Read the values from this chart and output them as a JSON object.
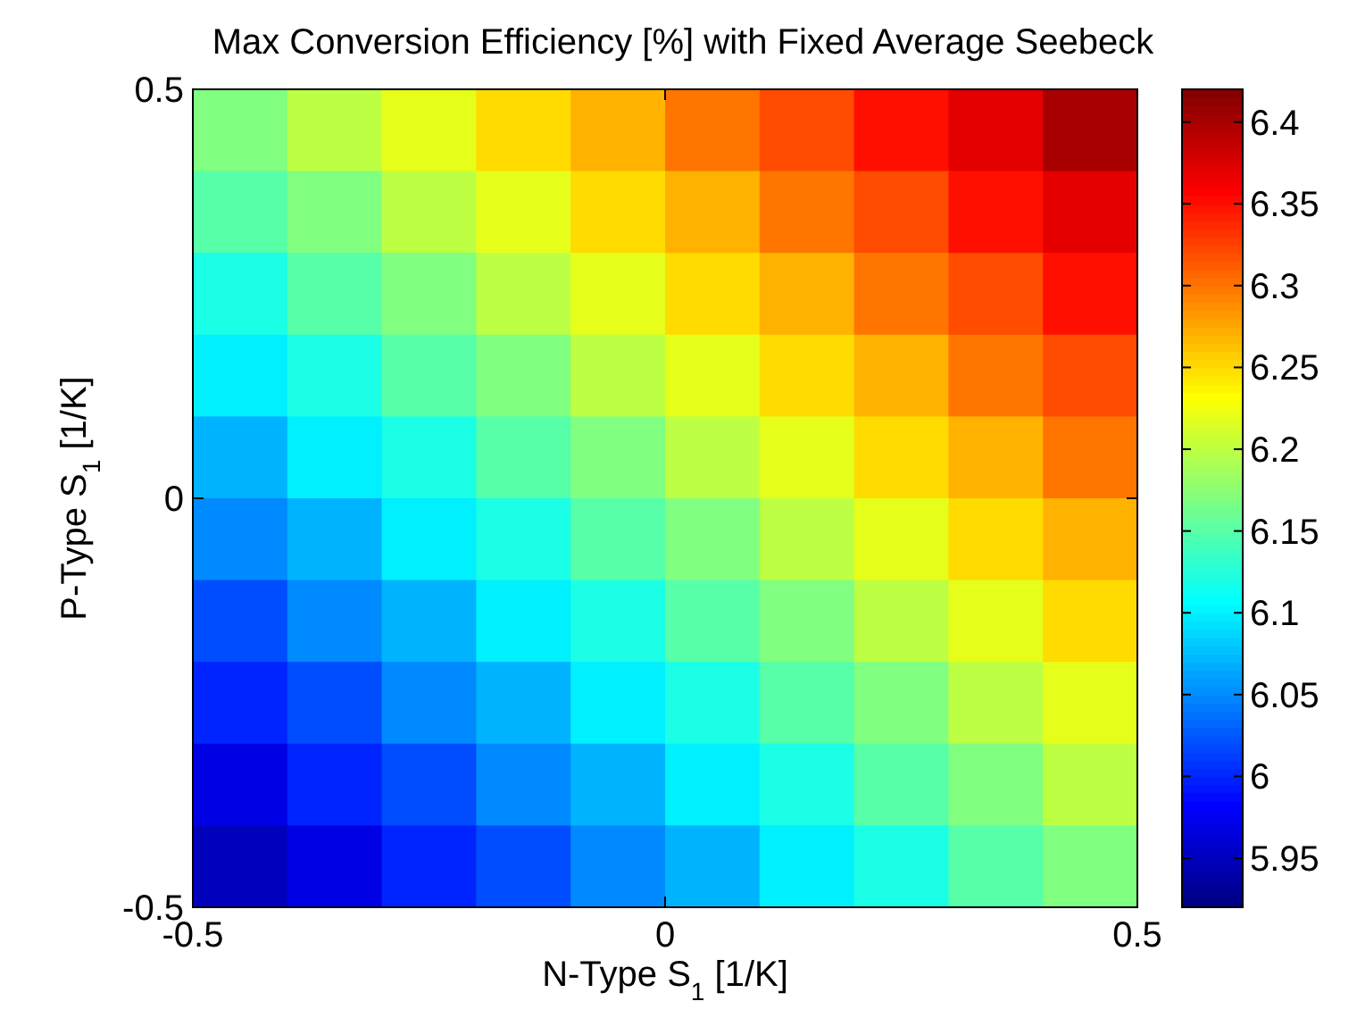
{
  "chart_data": {
    "type": "heatmap",
    "title": "Max Conversion Efficiency [%] with Fixed Average Seebeck",
    "xlabel": "N-Type S$_{1}$ [1/K]",
    "ylabel": "P-Type S$_{1}$ [1/K]",
    "x": [
      -0.45,
      -0.35,
      -0.25,
      -0.15,
      -0.05,
      0.05,
      0.15,
      0.25,
      0.35,
      0.45
    ],
    "y": [
      0.45,
      0.35,
      0.25,
      0.15,
      0.05,
      -0.05,
      -0.15,
      -0.25,
      -0.35,
      -0.45
    ],
    "cells": [
      [
        6.17,
        6.2,
        6.22,
        6.25,
        6.27,
        6.3,
        6.32,
        6.35,
        6.37,
        6.4
      ],
      [
        6.15,
        6.17,
        6.2,
        6.22,
        6.25,
        6.27,
        6.3,
        6.32,
        6.35,
        6.37
      ],
      [
        6.12,
        6.15,
        6.17,
        6.2,
        6.22,
        6.25,
        6.27,
        6.3,
        6.32,
        6.35
      ],
      [
        6.1,
        6.12,
        6.15,
        6.17,
        6.2,
        6.22,
        6.25,
        6.27,
        6.3,
        6.32
      ],
      [
        6.07,
        6.1,
        6.12,
        6.15,
        6.17,
        6.2,
        6.22,
        6.25,
        6.27,
        6.3
      ],
      [
        6.05,
        6.07,
        6.1,
        6.12,
        6.15,
        6.17,
        6.2,
        6.22,
        6.25,
        6.27
      ],
      [
        6.02,
        6.05,
        6.07,
        6.1,
        6.12,
        6.15,
        6.17,
        6.2,
        6.22,
        6.25
      ],
      [
        6.0,
        6.02,
        6.05,
        6.07,
        6.1,
        6.12,
        6.15,
        6.17,
        6.2,
        6.22
      ],
      [
        5.97,
        6.0,
        6.02,
        6.05,
        6.07,
        6.1,
        6.12,
        6.15,
        6.17,
        6.2
      ],
      [
        5.95,
        5.97,
        6.0,
        6.02,
        6.05,
        6.07,
        6.1,
        6.12,
        6.15,
        6.17
      ]
    ],
    "xlim": [
      -0.5,
      0.5
    ],
    "ylim": [
      -0.5,
      0.5
    ],
    "xticks": [
      -0.5,
      0,
      0.5
    ],
    "yticks": [
      -0.5,
      0,
      0.5
    ],
    "clim": [
      5.92,
      6.42
    ],
    "cticks": [
      5.95,
      6,
      6.05,
      6.1,
      6.15,
      6.2,
      6.25,
      6.3,
      6.35,
      6.4
    ]
  }
}
